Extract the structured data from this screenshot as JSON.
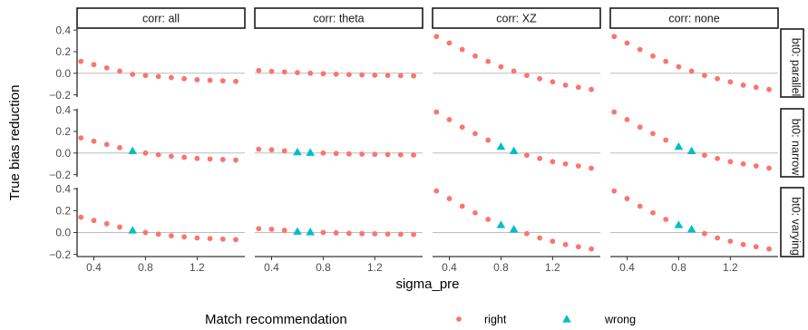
{
  "chart_data": {
    "type": "scatter",
    "facet_cols": [
      "corr: all",
      "corr: theta",
      "corr: XZ",
      "corr: none"
    ],
    "facet_rows": [
      "bt0: parallel",
      "bt0: narrow",
      "bt0: varying"
    ],
    "xlabel": "sigma_pre",
    "ylabel": "True bias reduction",
    "xlim": [
      0.27,
      1.57
    ],
    "ylim": [
      -0.22,
      0.41
    ],
    "x_ticks": [
      0.4,
      0.8,
      1.2
    ],
    "x_tick_labels": [
      "0.4",
      "0.8",
      "1.2"
    ],
    "y_ticks": [
      -0.2,
      0.0,
      0.2,
      0.4
    ],
    "y_tick_labels": [
      "−0.2",
      "0.0",
      "0.2",
      "0.4"
    ],
    "x": [
      0.3,
      0.4,
      0.5,
      0.6,
      0.7,
      0.8,
      0.9,
      1.0,
      1.1,
      1.2,
      1.3,
      1.4,
      1.5
    ],
    "legend": {
      "title": "Match recommendation",
      "entries": [
        {
          "label": "right",
          "shape": "circle"
        },
        {
          "label": "wrong",
          "shape": "triangle"
        }
      ],
      "placement": "bottom"
    },
    "colors": {
      "right": "#f8766d",
      "wrong": "#00bfc4",
      "strip_fill": "#ffffff",
      "zero_line": "#bdbdbd"
    },
    "panels": [
      {
        "col": 0,
        "row": 0,
        "y": [
          0.11,
          0.08,
          0.05,
          0.02,
          -0.01,
          -0.02,
          -0.03,
          -0.04,
          -0.05,
          -0.06,
          -0.065,
          -0.07,
          -0.075
        ],
        "match": [
          "right",
          "right",
          "right",
          "right",
          "right",
          "right",
          "right",
          "right",
          "right",
          "right",
          "right",
          "right",
          "right"
        ]
      },
      {
        "col": 1,
        "row": 0,
        "y": [
          0.025,
          0.018,
          0.012,
          0.006,
          0.0,
          -0.004,
          -0.008,
          -0.012,
          -0.015,
          -0.018,
          -0.02,
          -0.022,
          -0.024
        ],
        "match": [
          "right",
          "right",
          "right",
          "right",
          "right",
          "right",
          "right",
          "right",
          "right",
          "right",
          "right",
          "right",
          "right"
        ]
      },
      {
        "col": 2,
        "row": 0,
        "y": [
          0.34,
          0.28,
          0.22,
          0.16,
          0.11,
          0.06,
          0.02,
          -0.02,
          -0.05,
          -0.08,
          -0.11,
          -0.13,
          -0.15
        ],
        "match": [
          "right",
          "right",
          "right",
          "right",
          "right",
          "right",
          "right",
          "right",
          "right",
          "right",
          "right",
          "right",
          "right"
        ]
      },
      {
        "col": 3,
        "row": 0,
        "y": [
          0.34,
          0.28,
          0.22,
          0.16,
          0.11,
          0.06,
          0.02,
          -0.02,
          -0.05,
          -0.08,
          -0.11,
          -0.13,
          -0.15
        ],
        "match": [
          "right",
          "right",
          "right",
          "right",
          "right",
          "right",
          "right",
          "right",
          "right",
          "right",
          "right",
          "right",
          "right"
        ]
      },
      {
        "col": 0,
        "row": 1,
        "y": [
          0.14,
          0.11,
          0.08,
          0.05,
          0.02,
          0.0,
          -0.015,
          -0.03,
          -0.04,
          -0.05,
          -0.055,
          -0.06,
          -0.065
        ],
        "match": [
          "right",
          "right",
          "right",
          "right",
          "wrong",
          "right",
          "right",
          "right",
          "right",
          "right",
          "right",
          "right",
          "right"
        ]
      },
      {
        "col": 1,
        "row": 1,
        "y": [
          0.035,
          0.03,
          0.02,
          0.01,
          0.005,
          0.0,
          -0.004,
          -0.008,
          -0.01,
          -0.012,
          -0.014,
          -0.016,
          -0.018
        ],
        "match": [
          "right",
          "right",
          "right",
          "wrong",
          "wrong",
          "right",
          "right",
          "right",
          "right",
          "right",
          "right",
          "right",
          "right"
        ]
      },
      {
        "col": 2,
        "row": 1,
        "y": [
          0.38,
          0.31,
          0.24,
          0.18,
          0.12,
          0.06,
          0.02,
          -0.02,
          -0.05,
          -0.08,
          -0.1,
          -0.12,
          -0.14
        ],
        "match": [
          "right",
          "right",
          "right",
          "right",
          "right",
          "wrong",
          "wrong",
          "right",
          "right",
          "right",
          "right",
          "right",
          "right"
        ]
      },
      {
        "col": 3,
        "row": 1,
        "y": [
          0.38,
          0.31,
          0.24,
          0.18,
          0.12,
          0.06,
          0.02,
          -0.02,
          -0.05,
          -0.08,
          -0.1,
          -0.12,
          -0.14
        ],
        "match": [
          "right",
          "right",
          "right",
          "right",
          "right",
          "wrong",
          "wrong",
          "right",
          "right",
          "right",
          "right",
          "right",
          "right"
        ]
      },
      {
        "col": 0,
        "row": 2,
        "y": [
          0.14,
          0.11,
          0.08,
          0.05,
          0.02,
          0.0,
          -0.015,
          -0.03,
          -0.04,
          -0.05,
          -0.055,
          -0.06,
          -0.065
        ],
        "match": [
          "right",
          "right",
          "right",
          "right",
          "wrong",
          "right",
          "right",
          "right",
          "right",
          "right",
          "right",
          "right",
          "right"
        ]
      },
      {
        "col": 1,
        "row": 2,
        "y": [
          0.035,
          0.03,
          0.02,
          0.01,
          0.005,
          0.0,
          -0.004,
          -0.008,
          -0.01,
          -0.012,
          -0.014,
          -0.016,
          -0.018
        ],
        "match": [
          "right",
          "right",
          "right",
          "wrong",
          "wrong",
          "right",
          "right",
          "right",
          "right",
          "right",
          "right",
          "right",
          "right"
        ]
      },
      {
        "col": 2,
        "row": 2,
        "y": [
          0.38,
          0.31,
          0.24,
          0.18,
          0.12,
          0.07,
          0.03,
          -0.01,
          -0.05,
          -0.08,
          -0.11,
          -0.13,
          -0.15
        ],
        "match": [
          "right",
          "right",
          "right",
          "right",
          "right",
          "wrong",
          "wrong",
          "right",
          "right",
          "right",
          "right",
          "right",
          "right"
        ]
      },
      {
        "col": 3,
        "row": 2,
        "y": [
          0.38,
          0.31,
          0.24,
          0.18,
          0.12,
          0.07,
          0.03,
          -0.01,
          -0.05,
          -0.08,
          -0.11,
          -0.13,
          -0.15
        ],
        "match": [
          "right",
          "right",
          "right",
          "right",
          "right",
          "wrong",
          "wrong",
          "right",
          "right",
          "right",
          "right",
          "right",
          "right"
        ]
      }
    ]
  }
}
